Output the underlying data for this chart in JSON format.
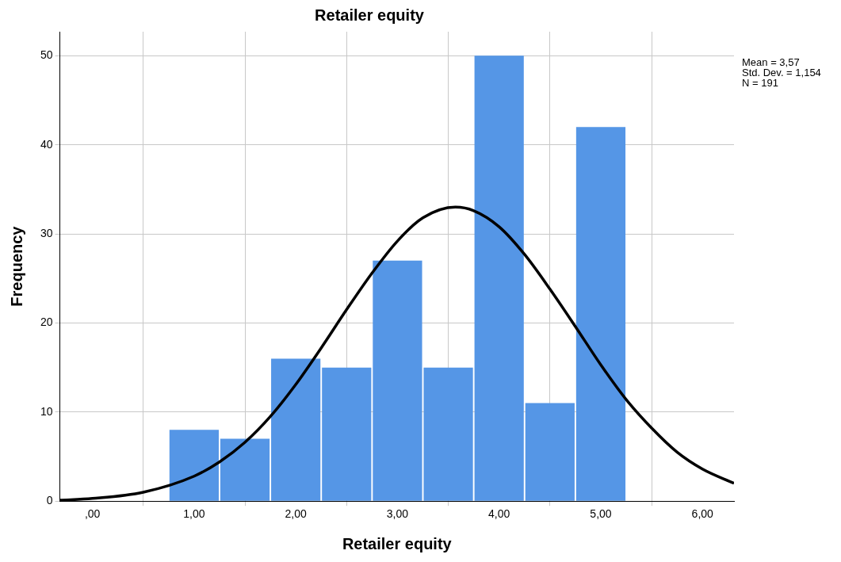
{
  "chart_data": {
    "type": "histogram",
    "title": "Retailer equity",
    "xlabel": "Retailer equity",
    "ylabel": "Frequency",
    "bins": [
      0.75,
      1.25,
      1.75,
      2.25,
      2.75,
      3.25,
      3.75,
      4.25,
      4.75,
      5.25
    ],
    "values": [
      8,
      7,
      16,
      15,
      27,
      15,
      50,
      11,
      42
    ],
    "color": "#5596e6",
    "series": [
      {
        "type": "line",
        "color": "#000000",
        "x": [
          -0.32,
          0,
          0.5,
          1,
          1.25,
          1.5,
          1.75,
          2,
          2.25,
          2.5,
          2.75,
          3,
          3.25,
          3.57,
          3.75,
          4,
          4.25,
          4.5,
          4.75,
          5,
          5.25,
          5.5,
          5.75,
          6,
          6.31
        ],
        "values": [
          0.1,
          0.3,
          1,
          2.8,
          4.4,
          6.6,
          9.5,
          13.1,
          17.2,
          21.5,
          25.6,
          29.2,
          31.8,
          33,
          32.6,
          30.8,
          27.7,
          23.8,
          19.6,
          15.3,
          11.4,
          8.2,
          5.5,
          3.6,
          2
        ]
      }
    ],
    "xlim": [
      -0.32,
      6.31
    ],
    "xticks": [
      {
        "value": 0,
        "label": ",00"
      },
      {
        "value": 1,
        "label": "1,00"
      },
      {
        "value": 2,
        "label": "2,00"
      },
      {
        "value": 3,
        "label": "3,00"
      },
      {
        "value": 4,
        "label": "4,00"
      },
      {
        "value": 5,
        "label": "5,00"
      },
      {
        "value": 6,
        "label": "6,00"
      }
    ],
    "ylim": [
      0,
      52.7
    ],
    "yticks": [
      0,
      10,
      20,
      30,
      40,
      50
    ],
    "grid": true,
    "legend": false,
    "marker": "none",
    "line_style": "solid",
    "annotations": [
      "Mean = 3,57",
      "Std. Dev. = 1,154",
      "N = 191"
    ]
  }
}
